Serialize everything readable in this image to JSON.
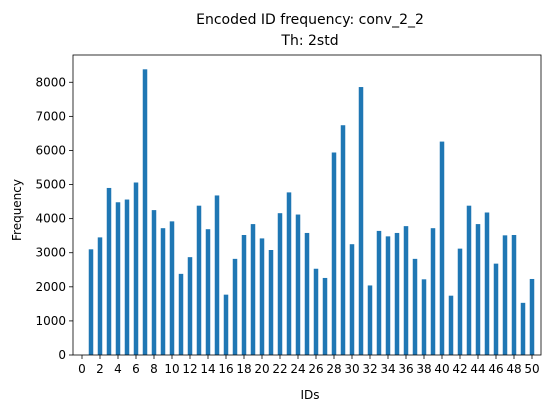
{
  "chart_data": {
    "type": "bar",
    "title_line1": "Encoded ID frequency: conv_2_2",
    "title_line2": "Th: 2std",
    "xlabel": "IDs",
    "ylabel": "Frequency",
    "x": [
      1,
      2,
      3,
      4,
      5,
      6,
      7,
      8,
      9,
      10,
      11,
      12,
      13,
      14,
      15,
      16,
      17,
      18,
      19,
      20,
      21,
      22,
      23,
      24,
      25,
      26,
      27,
      28,
      29,
      30,
      31,
      32,
      33,
      34,
      35,
      36,
      37,
      38,
      39,
      40,
      41,
      42,
      43,
      44,
      45,
      46,
      47,
      48,
      49,
      50
    ],
    "values": [
      3100,
      3450,
      4900,
      4480,
      4560,
      5060,
      8380,
      4250,
      3720,
      3920,
      2380,
      2870,
      4380,
      3690,
      4680,
      1770,
      2820,
      3520,
      3840,
      3420,
      3080,
      4160,
      4770,
      4120,
      3580,
      2530,
      2260,
      5940,
      6740,
      3250,
      7860,
      2040,
      3640,
      3480,
      3580,
      3780,
      2820,
      2220,
      3720,
      6260,
      1740,
      3120,
      4380,
      3840,
      4180,
      2680,
      3510,
      3520,
      1530,
      2230
    ],
    "xlim": [
      -1,
      51
    ],
    "ylim": [
      0,
      8800
    ],
    "xticks": [
      0,
      2,
      4,
      6,
      8,
      10,
      12,
      14,
      16,
      18,
      20,
      22,
      24,
      26,
      28,
      30,
      32,
      34,
      36,
      38,
      40,
      42,
      44,
      46,
      48,
      50
    ],
    "yticks": [
      0,
      1000,
      2000,
      3000,
      4000,
      5000,
      6000,
      7000,
      8000
    ],
    "bar_color": "#1f77b4",
    "grid": false,
    "legend": "none"
  }
}
